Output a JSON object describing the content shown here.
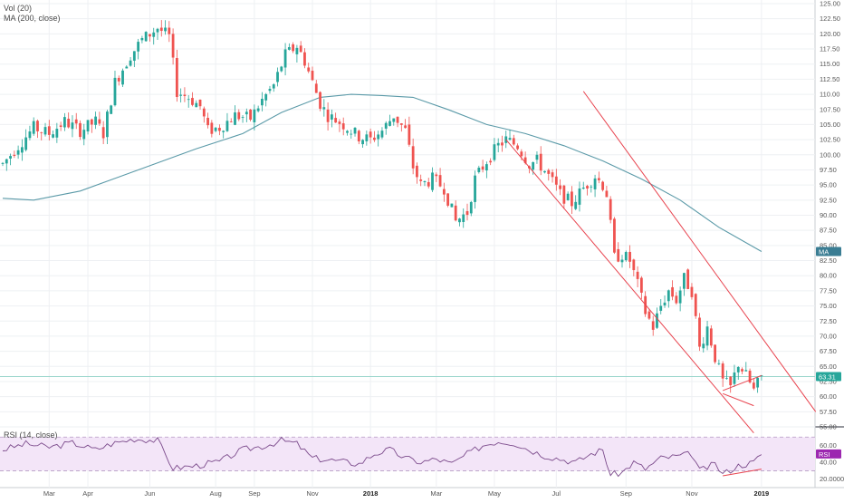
{
  "legend": {
    "volume": "Vol (20)",
    "ma": "MA (200, close)",
    "rsi": "RSI (14, close)"
  },
  "colors": {
    "up": "#26a69a",
    "down": "#ef5350",
    "ma_line": "#5b9aa8",
    "rsi_line": "#7b4a8b",
    "rsi_band": "#f3e5f8",
    "channel": "#e8434e",
    "price_line": "#9ad6cc",
    "grid": "#eef0f3",
    "axis_text": "#555555"
  },
  "badges": {
    "ma": {
      "label": "MA",
      "value": 84.0,
      "color": "#3a7d93"
    },
    "price": {
      "label": "63.31",
      "value": 63.31,
      "color": "#26a69a"
    },
    "rsi": {
      "label": "RSI",
      "value": 50.0,
      "color": "#9c27b0"
    }
  },
  "chart_data": {
    "type": "candlestick",
    "title": "",
    "price_axis": {
      "ylim": [
        55,
        125
      ],
      "ticks": [
        "125.00",
        "122.50",
        "120.00",
        "117.50",
        "115.00",
        "112.50",
        "110.00",
        "107.50",
        "105.00",
        "102.50",
        "100.00",
        "97.50",
        "95.00",
        "92.50",
        "90.00",
        "87.50",
        "85.00",
        "82.50",
        "80.00",
        "77.50",
        "75.00",
        "72.50",
        "70.00",
        "67.50",
        "65.00",
        "62.50",
        "60.00",
        "57.50",
        "55.00"
      ]
    },
    "rsi_axis": {
      "ylim": [
        10,
        80
      ],
      "ticks": [
        "60.00",
        "40.00",
        "20.0000"
      ],
      "tick_values": [
        60,
        40,
        20
      ],
      "band": [
        30,
        70
      ]
    },
    "x_axis": {
      "labels": [
        "Mar",
        "Apr",
        "Jun",
        "Aug",
        "Sep",
        "Nov",
        "2018",
        "Mar",
        "May",
        "Jul",
        "Sep",
        "Nov",
        "2019"
      ],
      "label_index": [
        12,
        22,
        38,
        55,
        65,
        80,
        95,
        112,
        127,
        143,
        161,
        178,
        196
      ]
    },
    "price_line_value": 63.31,
    "ma_200": [
      [
        0,
        92.8
      ],
      [
        8,
        92.5
      ],
      [
        20,
        94.0
      ],
      [
        35,
        97.5
      ],
      [
        50,
        101.0
      ],
      [
        62,
        103.5
      ],
      [
        72,
        107.0
      ],
      [
        82,
        109.5
      ],
      [
        90,
        110.0
      ],
      [
        98,
        109.8
      ],
      [
        106,
        109.5
      ],
      [
        115,
        107.5
      ],
      [
        125,
        105.0
      ],
      [
        135,
        103.5
      ],
      [
        145,
        101.5
      ],
      [
        155,
        99.0
      ],
      [
        165,
        96.0
      ],
      [
        175,
        92.5
      ],
      [
        185,
        88.0
      ],
      [
        196,
        84.0
      ]
    ],
    "candle_anchors": [
      [
        0,
        98.5
      ],
      [
        4,
        101.5
      ],
      [
        8,
        104.5
      ],
      [
        12,
        103.5
      ],
      [
        16,
        105.5
      ],
      [
        20,
        104.0
      ],
      [
        24,
        105.5
      ],
      [
        26,
        103.5
      ],
      [
        29,
        112.0
      ],
      [
        33,
        116.5
      ],
      [
        36,
        119.0
      ],
      [
        40,
        121.0
      ],
      [
        43,
        119.5
      ],
      [
        45,
        110.5
      ],
      [
        48,
        109.5
      ],
      [
        51,
        108.0
      ],
      [
        53,
        104.0
      ],
      [
        56,
        104.5
      ],
      [
        60,
        106.5
      ],
      [
        64,
        106.0
      ],
      [
        67,
        109.0
      ],
      [
        70,
        111.5
      ],
      [
        73,
        116.5
      ],
      [
        76,
        118.0
      ],
      [
        78,
        115.5
      ],
      [
        80,
        112.0
      ],
      [
        82,
        108.5
      ],
      [
        84,
        106.5
      ],
      [
        88,
        105.0
      ],
      [
        92,
        103.0
      ],
      [
        95,
        102.5
      ],
      [
        98,
        104.0
      ],
      [
        101,
        106.5
      ],
      [
        104,
        104.0
      ],
      [
        106,
        98.0
      ],
      [
        108,
        95.0
      ],
      [
        111,
        96.0
      ],
      [
        114,
        94.5
      ],
      [
        117,
        89.0
      ],
      [
        120,
        90.5
      ],
      [
        122,
        96.0
      ],
      [
        125,
        99.0
      ],
      [
        128,
        101.5
      ],
      [
        130,
        102.5
      ],
      [
        133,
        101.5
      ],
      [
        136,
        98.5
      ],
      [
        138,
        99.0
      ],
      [
        141,
        96.5
      ],
      [
        144,
        93.5
      ],
      [
        147,
        92.0
      ],
      [
        150,
        94.5
      ],
      [
        153,
        96.5
      ],
      [
        155,
        95.0
      ],
      [
        156,
        93.5
      ],
      [
        158,
        83.0
      ],
      [
        160,
        83.5
      ],
      [
        162,
        82.5
      ],
      [
        164,
        78.5
      ],
      [
        166,
        74.0
      ],
      [
        168,
        71.5
      ],
      [
        170,
        75.0
      ],
      [
        172,
        77.5
      ],
      [
        174,
        76.0
      ],
      [
        176,
        79.5
      ],
      [
        178,
        77.5
      ],
      [
        180,
        68.0
      ],
      [
        182,
        71.5
      ],
      [
        184,
        66.5
      ],
      [
        186,
        62.5
      ],
      [
        188,
        61.5
      ],
      [
        190,
        65.5
      ],
      [
        192,
        63.5
      ],
      [
        194,
        61.0
      ],
      [
        196,
        63.31
      ]
    ],
    "rsi_anchors": [
      [
        0,
        55
      ],
      [
        6,
        62
      ],
      [
        12,
        58
      ],
      [
        18,
        63
      ],
      [
        24,
        55
      ],
      [
        28,
        62
      ],
      [
        34,
        68
      ],
      [
        40,
        66
      ],
      [
        44,
        33
      ],
      [
        50,
        36
      ],
      [
        56,
        41
      ],
      [
        62,
        55
      ],
      [
        68,
        60
      ],
      [
        72,
        66
      ],
      [
        76,
        62
      ],
      [
        80,
        45
      ],
      [
        86,
        42
      ],
      [
        92,
        38
      ],
      [
        96,
        50
      ],
      [
        100,
        55
      ],
      [
        104,
        45
      ],
      [
        108,
        40
      ],
      [
        112,
        44
      ],
      [
        116,
        38
      ],
      [
        120,
        50
      ],
      [
        124,
        60
      ],
      [
        128,
        65
      ],
      [
        132,
        63
      ],
      [
        136,
        55
      ],
      [
        140,
        48
      ],
      [
        144,
        44
      ],
      [
        148,
        40
      ],
      [
        152,
        50
      ],
      [
        155,
        55
      ],
      [
        157,
        25
      ],
      [
        160,
        28
      ],
      [
        163,
        40
      ],
      [
        166,
        32
      ],
      [
        170,
        45
      ],
      [
        174,
        47
      ],
      [
        178,
        50
      ],
      [
        180,
        30
      ],
      [
        184,
        38
      ],
      [
        186,
        26
      ],
      [
        190,
        36
      ],
      [
        194,
        40
      ],
      [
        196,
        50
      ]
    ],
    "channel": {
      "upper": [
        [
          150,
          110.5
        ],
        [
          210,
          57.5
        ]
      ],
      "lower": [
        [
          130,
          102.5
        ],
        [
          194,
          54.0
        ]
      ],
      "wedge_top": [
        [
          186,
          61.0
        ],
        [
          196,
          63.5
        ]
      ],
      "wedge_bottom": [
        [
          186,
          60.5
        ],
        [
          194,
          58.5
        ]
      ]
    },
    "rsi_trend": [
      [
        186,
        24
      ],
      [
        196,
        32
      ]
    ]
  }
}
